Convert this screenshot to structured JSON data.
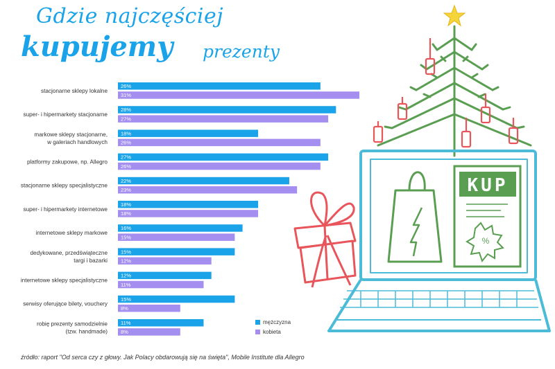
{
  "header": {
    "title_line1": "Gdzie najczęściej",
    "title_line2": "kupujemy",
    "title_line3": "prezenty"
  },
  "chart_data": {
    "type": "bar",
    "orientation": "horizontal",
    "categories": [
      "stacjonarne sklepy lokalne",
      "super- i hipermarkety stacjonarne",
      "markowe sklepy stacjonarne,\nw galeriach handlowych",
      "platformy zakupowe, np. Allegro",
      "stacjonarne sklepy specjalistyczne",
      "super- i hipermarkety internetowe",
      "internetowe sklepy markowe",
      "dedykowane, przedświąteczne\ntargi i bazarki",
      "internetowe sklepy specjalistyczne",
      "serwisy oferujące bilety, vouchery",
      "robię prezenty samodzielnie\n(tzw. handmade)"
    ],
    "series": [
      {
        "name": "mężczyzna",
        "color": "#1aa3e8",
        "values": [
          26,
          28,
          18,
          27,
          22,
          18,
          16,
          15,
          12,
          15,
          11
        ]
      },
      {
        "name": "kobieta",
        "color": "#a48ff0",
        "values": [
          31,
          27,
          26,
          26,
          23,
          18,
          15,
          12,
          11,
          8,
          8
        ]
      }
    ],
    "xlim": [
      0,
      31
    ],
    "value_suffix": "%",
    "legend_position": "bottom-right"
  },
  "footnote": "źródło: raport \"Od serca czy z głowy. Jak Polacy obdarowują się na święta\", Mobile Institute dla Allegro",
  "illustration": {
    "sign_text": "KUP",
    "colors": {
      "tree": "#5a9e52",
      "tags": "#e8555a",
      "laptop": "#4bbbd8",
      "gift": "#e8555a",
      "star": "#f5d63a",
      "bag": "#5a9e52"
    }
  }
}
